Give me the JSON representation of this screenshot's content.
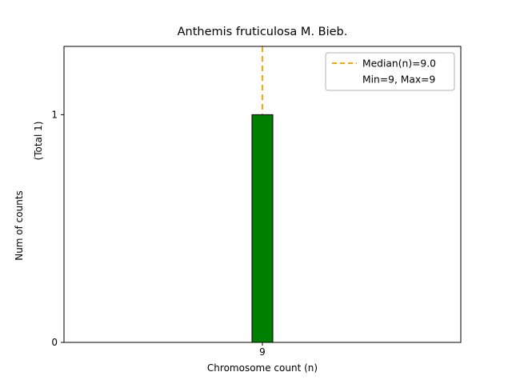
{
  "chart_data": {
    "type": "bar",
    "title": "Anthemis fruticulosa M. Bieb.",
    "xlabel": "Chromosome count (n)",
    "ylabel": "Num of counts",
    "total_label": "(Total 1)",
    "categories": [
      "9"
    ],
    "values": [
      1
    ],
    "ylim": [
      0,
      1.3
    ],
    "yticks": [
      "0",
      "1"
    ],
    "grid": false,
    "bar_color": "#008000",
    "bar_edge_color": "#000000",
    "median_value": 9.0,
    "median_line_color": "#ffa500",
    "legend_position": "upper right",
    "legend": [
      {
        "label": "Median(n)=9.0",
        "has_line": true
      },
      {
        "label": "Min=9, Max=9",
        "has_line": false
      }
    ]
  }
}
